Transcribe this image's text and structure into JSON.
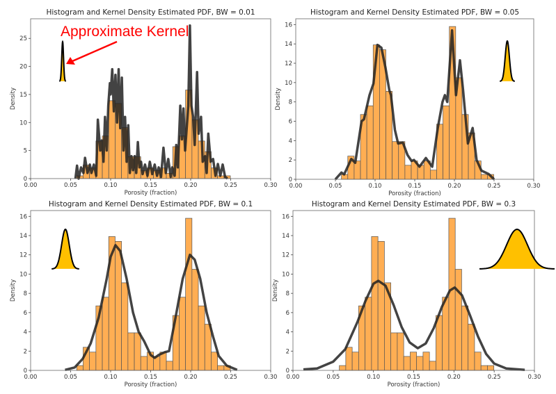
{
  "annotation": {
    "text": "Approximate Kernel",
    "color": "#ff0000"
  },
  "colors": {
    "bar_fill": "#ffa540",
    "bar_edge": "#555555",
    "kde_line": "#222222",
    "kernel_fill": "#ffc000"
  },
  "chart_data": [
    {
      "type": "bar",
      "title": "Histogram and Kernel Density Estimated PDF, BW = 0.01",
      "bandwidth": 0.01,
      "xlabel": "Porosity (fraction)",
      "ylabel": "Density",
      "xlim": [
        0,
        0.3
      ],
      "ylim": [
        0,
        28.5
      ],
      "xticks": [
        "0.00",
        "0.05",
        "0.10",
        "0.15",
        "0.20",
        "0.25",
        "0.30"
      ],
      "yticks": [
        "0",
        "5",
        "10",
        "15",
        "20",
        "25"
      ],
      "histogram": {
        "bin_start": 0.0576,
        "bin_width": 0.008,
        "values": [
          0.5,
          2.4,
          1.9,
          6.7,
          7.6,
          13.9,
          13.4,
          9.1,
          3.9,
          3.9,
          1.45,
          1.9,
          1.45,
          1.9,
          0.95,
          5.7,
          7.6,
          15.8,
          10.5,
          6.7,
          4.8,
          1.9,
          0.5,
          0.5
        ]
      },
      "kde": {
        "x": [
          0.056,
          0.058,
          0.06,
          0.063,
          0.066,
          0.068,
          0.071,
          0.074,
          0.076,
          0.079,
          0.082,
          0.084,
          0.087,
          0.089,
          0.091,
          0.093,
          0.095,
          0.097,
          0.099,
          0.1,
          0.102,
          0.104,
          0.106,
          0.108,
          0.11,
          0.112,
          0.114,
          0.116,
          0.118,
          0.12,
          0.122,
          0.124,
          0.126,
          0.128,
          0.13,
          0.132,
          0.134,
          0.136,
          0.138,
          0.14,
          0.143,
          0.146,
          0.149,
          0.152,
          0.155,
          0.158,
          0.16,
          0.163,
          0.166,
          0.169,
          0.172,
          0.175,
          0.177,
          0.18,
          0.182,
          0.184,
          0.187,
          0.189,
          0.191,
          0.193,
          0.195,
          0.197,
          0.199,
          0.201,
          0.203,
          0.205,
          0.208,
          0.21,
          0.213,
          0.215,
          0.218,
          0.22,
          0.222,
          0.225,
          0.228,
          0.231,
          0.234,
          0.237,
          0.24,
          0.243,
          0.246
        ],
        "y": [
          0,
          2.3,
          0,
          2,
          1,
          3.7,
          1,
          2.5,
          1,
          2.5,
          0.5,
          10.5,
          5,
          6.8,
          3,
          11,
          5,
          13,
          17,
          15,
          19.5,
          12,
          18.5,
          10,
          19.5,
          9,
          18,
          5,
          11,
          3,
          9.5,
          1,
          4,
          1.5,
          4,
          1,
          6.5,
          2,
          3,
          0.8,
          2.5,
          0.5,
          3,
          0.8,
          2.5,
          0.5,
          2,
          0.3,
          5.5,
          1,
          3.5,
          0.3,
          2,
          0.5,
          6,
          2,
          13,
          7,
          12.5,
          5,
          9,
          13,
          27.3,
          13,
          11,
          6,
          19,
          8,
          11,
          3,
          4,
          1,
          8,
          3,
          3.5,
          0.5,
          2.6,
          0.5,
          2.5,
          0.3,
          0
        ]
      }
    },
    {
      "type": "bar",
      "title": "Histogram and Kernel Density Estimated PDF, BW = 0.05",
      "bandwidth": 0.05,
      "xlabel": "Porosity (fraction)",
      "ylabel": "Density",
      "xlim": [
        0,
        0.3
      ],
      "ylim": [
        0,
        16.6
      ],
      "xticks": [
        "0.00",
        "0.05",
        "0.10",
        "0.15",
        "0.20",
        "0.25",
        "0.30"
      ],
      "yticks": [
        "0",
        "2",
        "4",
        "6",
        "8",
        "10",
        "12",
        "14",
        "16"
      ],
      "histogram": {
        "bin_start": 0.0576,
        "bin_width": 0.008,
        "values": [
          0.5,
          2.4,
          1.9,
          6.7,
          7.6,
          13.9,
          13.4,
          9.1,
          3.9,
          3.9,
          1.45,
          1.9,
          1.45,
          1.9,
          0.95,
          5.7,
          7.6,
          15.8,
          10.5,
          6.7,
          4.8,
          1.9,
          0.5,
          0.5
        ]
      },
      "kde": {
        "x": [
          0.05,
          0.0576,
          0.061,
          0.07,
          0.075,
          0.083,
          0.086,
          0.093,
          0.098,
          0.103,
          0.108,
          0.113,
          0.118,
          0.12,
          0.125,
          0.129,
          0.135,
          0.141,
          0.146,
          0.149,
          0.156,
          0.164,
          0.172,
          0.179,
          0.185,
          0.188,
          0.191,
          0.197,
          0.202,
          0.207,
          0.211,
          0.217,
          0.223,
          0.228,
          0.234,
          0.243,
          0.25
        ],
        "y": [
          0,
          0.7,
          0.5,
          2.1,
          1.7,
          6,
          6.2,
          8.7,
          9.9,
          13.9,
          13.6,
          11.6,
          9.2,
          8.7,
          5.1,
          3.7,
          3.8,
          2.5,
          1.9,
          2,
          1.3,
          2.2,
          1.3,
          5.3,
          8,
          8.7,
          8,
          15.4,
          8.7,
          12.3,
          9.2,
          3.7,
          5.3,
          2,
          0.9,
          0.55,
          0
        ]
      }
    },
    {
      "type": "bar",
      "title": "Histogram and Kernel Density Estimated PDF, BW = 0.1",
      "bandwidth": 0.1,
      "xlabel": "Porosity (fraction)",
      "ylabel": "Density",
      "xlim": [
        0,
        0.3
      ],
      "ylim": [
        0,
        16.6
      ],
      "xticks": [
        "0.00",
        "0.05",
        "0.10",
        "0.15",
        "0.20",
        "0.25",
        "0.30"
      ],
      "yticks": [
        "0",
        "2",
        "4",
        "6",
        "8",
        "10",
        "12",
        "14",
        "16"
      ],
      "histogram": {
        "bin_start": 0.0576,
        "bin_width": 0.008,
        "values": [
          0.5,
          2.4,
          1.9,
          6.7,
          7.6,
          13.9,
          13.4,
          9.1,
          3.9,
          3.9,
          1.45,
          1.9,
          1.45,
          1.9,
          0.95,
          5.7,
          7.6,
          15.8,
          10.5,
          6.7,
          4.8,
          1.9,
          0.5,
          0.5
        ]
      },
      "kde": {
        "x": [
          0.043,
          0.055,
          0.065,
          0.075,
          0.085,
          0.095,
          0.1,
          0.106,
          0.112,
          0.12,
          0.128,
          0.135,
          0.142,
          0.15,
          0.155,
          0.16,
          0.168,
          0.173,
          0.18,
          0.19,
          0.199,
          0.205,
          0.212,
          0.22,
          0.228,
          0.235,
          0.245,
          0.258
        ],
        "y": [
          0.05,
          0.3,
          1.2,
          2.8,
          5.5,
          9.5,
          11.8,
          13,
          12.4,
          9.5,
          6,
          4,
          3,
          1.6,
          1.3,
          1.6,
          1.9,
          2.0,
          5,
          9.5,
          12,
          11.5,
          9.5,
          6,
          3.5,
          1.5,
          0.5,
          0.05
        ]
      }
    },
    {
      "type": "bar",
      "title": "Histogram and Kernel Density Estimated PDF, BW = 0.3",
      "bandwidth": 0.3,
      "xlabel": "Porosity (fraction)",
      "ylabel": "Density",
      "xlim": [
        0,
        0.3
      ],
      "ylim": [
        0,
        16.6
      ],
      "xticks": [
        "0.00",
        "0.05",
        "0.10",
        "0.15",
        "0.20",
        "0.25",
        "0.30"
      ],
      "yticks": [
        "0",
        "2",
        "4",
        "6",
        "8",
        "10",
        "12",
        "14",
        "16"
      ],
      "histogram": {
        "bin_start": 0.0576,
        "bin_width": 0.008,
        "values": [
          0.5,
          2.4,
          1.9,
          6.7,
          7.6,
          13.9,
          13.4,
          9.1,
          3.9,
          3.9,
          1.45,
          1.9,
          1.45,
          1.9,
          0.95,
          5.7,
          7.6,
          15.8,
          10.5,
          6.7,
          4.8,
          1.9,
          0.5,
          0.5
        ]
      },
      "kde": {
        "x": [
          0.013,
          0.03,
          0.05,
          0.065,
          0.08,
          0.09,
          0.1,
          0.106,
          0.115,
          0.125,
          0.135,
          0.145,
          0.155,
          0.165,
          0.175,
          0.185,
          0.195,
          0.201,
          0.21,
          0.22,
          0.23,
          0.24,
          0.25,
          0.265,
          0.288
        ],
        "y": [
          0.1,
          0.2,
          0.9,
          2.2,
          5,
          7.2,
          9,
          9.3,
          8.8,
          6.8,
          4.5,
          2.9,
          2.3,
          2.8,
          4.4,
          6.6,
          8.3,
          8.6,
          7.8,
          5.7,
          3.5,
          1.7,
          0.7,
          0.2,
          0.05
        ]
      }
    }
  ]
}
